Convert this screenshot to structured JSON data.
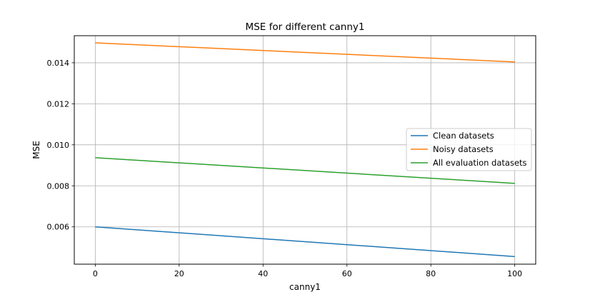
{
  "chart_data": {
    "type": "line",
    "title": "MSE for different canny1",
    "xlabel": "canny1",
    "ylabel": "MSE",
    "xlim": [
      -5,
      105
    ],
    "ylim": [
      0.00418,
      0.01532
    ],
    "x_ticks": [
      0,
      20,
      40,
      60,
      80,
      100
    ],
    "y_ticks": [
      0.006,
      0.008,
      0.01,
      0.012,
      0.014
    ],
    "y_tick_labels": [
      "0.006",
      "0.008",
      "0.010",
      "0.012",
      "0.014"
    ],
    "grid": true,
    "legend_position": "center-right",
    "x": [
      0,
      100
    ],
    "series": [
      {
        "name": "Clean datasets",
        "color": "#1f77b4",
        "values": [
          0.006,
          0.00455
        ]
      },
      {
        "name": "Noisy datasets",
        "color": "#ff7f0e",
        "values": [
          0.01497,
          0.01404
        ]
      },
      {
        "name": "All evaluation datasets",
        "color": "#2ca02c",
        "values": [
          0.00937,
          0.00812
        ]
      }
    ]
  }
}
